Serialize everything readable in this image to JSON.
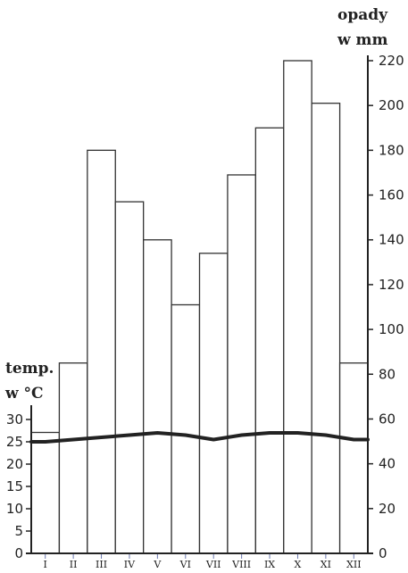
{
  "chart_data": {
    "type": "climate-diagram",
    "categories": [
      "I",
      "II",
      "III",
      "IV",
      "V",
      "VI",
      "VII",
      "VIII",
      "IX",
      "X",
      "XI",
      "XII"
    ],
    "series": [
      {
        "values": [
          54,
          85,
          180,
          157,
          140,
          111,
          134,
          169,
          190,
          220,
          201,
          85
        ],
        "type": "bar"
      },
      {
        "values": [
          25,
          25.5,
          26,
          26.5,
          27,
          26.5,
          25.5,
          26.5,
          27,
          27,
          26.5,
          25.5
        ],
        "type": "line"
      }
    ],
    "y_left": {
      "label_line1": "temp.",
      "label_line2": "w °C",
      "ticks": [
        "0",
        "5",
        "10",
        "15",
        "20",
        "25",
        "30"
      ],
      "range": [
        0,
        30
      ]
    },
    "y_right": {
      "label_line1": "opady",
      "label_line2": "w mm",
      "ticks": [
        "0",
        "20",
        "40",
        "60",
        "80",
        "100",
        "120",
        "140",
        "160",
        "180",
        "200",
        "220"
      ],
      "range": [
        0,
        220
      ]
    },
    "grid": false,
    "legend": "none"
  }
}
